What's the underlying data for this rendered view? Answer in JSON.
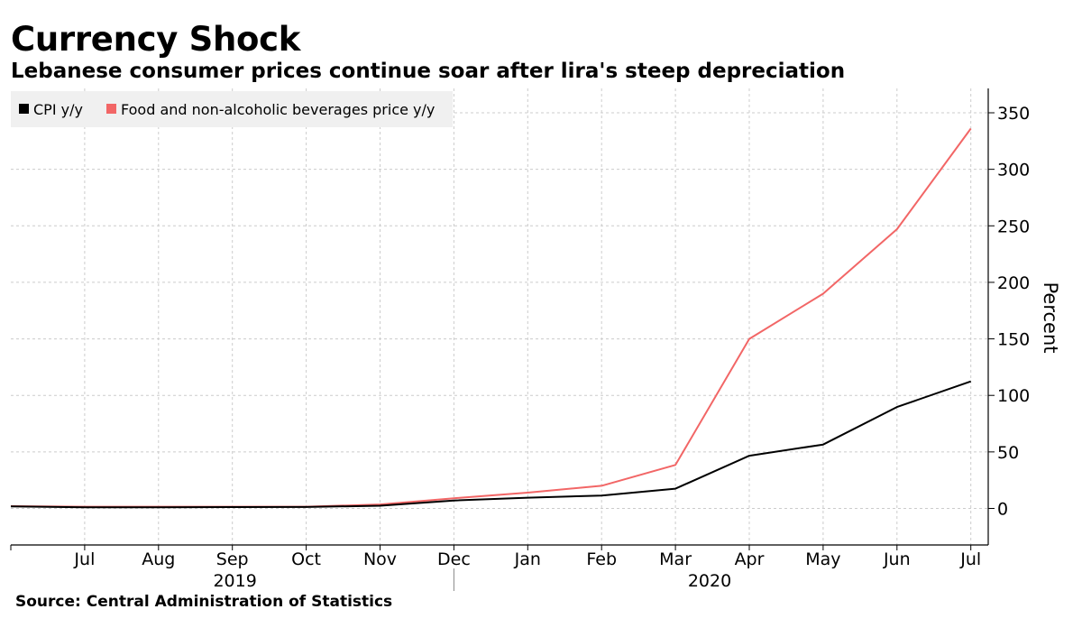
{
  "title": "Currency Shock",
  "subtitle": "Lebanese consumer prices continue soar after lira's steep depreciation",
  "source": "Source: Central Administration of Statistics",
  "colors": {
    "cpi": "#000000",
    "food": "#f26666",
    "grid": "#cccccc",
    "legend_bg": "#f0f0f0"
  },
  "chart_data": {
    "type": "line",
    "title": "Currency Shock",
    "subtitle": "Lebanese consumer prices continue soar after lira's steep depreciation",
    "xlabel": "",
    "ylabel": "Percent",
    "ylim": [
      -33,
      370
    ],
    "yticks": [
      0,
      50,
      100,
      150,
      200,
      250,
      300,
      350
    ],
    "x": [
      "2019-06",
      "2019-07",
      "2019-08",
      "2019-09",
      "2019-10",
      "2019-11",
      "2019-12",
      "2020-01",
      "2020-02",
      "2020-03",
      "2020-04",
      "2020-05",
      "2020-06",
      "2020-07"
    ],
    "x_tick_labels": [
      "Jul",
      "Aug",
      "Sep",
      "Oct",
      "Nov",
      "Dec",
      "Jan",
      "Feb",
      "Mar",
      "Apr",
      "May",
      "Jun",
      "Jul"
    ],
    "year_labels": [
      "2019",
      "2020"
    ],
    "legend_position": "top-left",
    "grid": true,
    "series": [
      {
        "name": "CPI y/y",
        "color": "#000000",
        "values": [
          1.8,
          1.0,
          1.0,
          1.2,
          1.3,
          2.4,
          7.0,
          9.5,
          11.4,
          17.5,
          46.6,
          56.5,
          89.7,
          112.4
        ]
      },
      {
        "name": "Food and non-alcoholic beverages price y/y",
        "color": "#f26666",
        "values": [
          2.0,
          1.5,
          1.5,
          1.5,
          1.5,
          3.5,
          9.0,
          14.0,
          20.0,
          38.5,
          150.0,
          190.0,
          247.0,
          336.0
        ]
      }
    ]
  }
}
